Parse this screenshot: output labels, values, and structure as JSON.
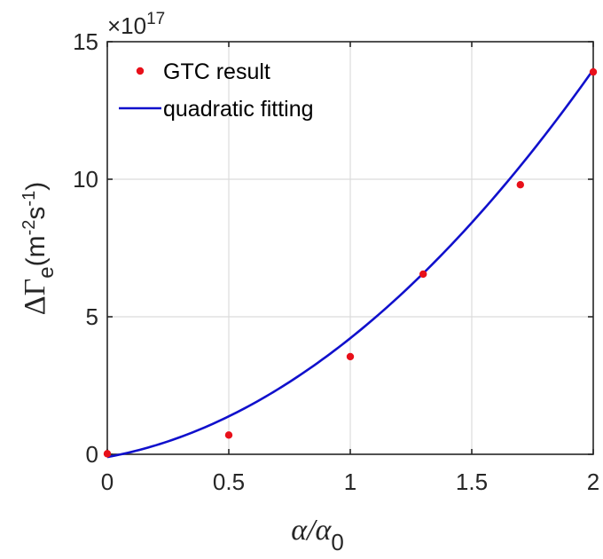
{
  "chart_data": {
    "type": "line",
    "title": "",
    "xlabel": "α/α",
    "xlabel_sub": "0",
    "ylabel": "ΔΓ",
    "ylabel_sub": "e",
    "ylabel_units": "(m",
    "ylabel_units_exp1": "-2",
    "ylabel_units_mid": "s",
    "ylabel_units_exp2": "-1",
    "ylabel_units_end": ")",
    "y_multiplier_base": "×10",
    "y_multiplier_exp": "17",
    "xlim": [
      0,
      2
    ],
    "ylim": [
      0,
      15
    ],
    "xticks": [
      0,
      0.5,
      1,
      1.5,
      2
    ],
    "xtick_labels": [
      "0",
      "0.5",
      "1",
      "1.5",
      "2"
    ],
    "yticks": [
      0,
      5,
      10,
      15
    ],
    "ytick_labels": [
      "0",
      "5",
      "10",
      "15"
    ],
    "grid": true,
    "legend_position": "top-left",
    "series": [
      {
        "name": "GTC result",
        "kind": "scatter",
        "color": "#e8101a",
        "x": [
          0,
          0.5,
          1,
          1.3,
          1.7,
          2
        ],
        "y": [
          0.02,
          0.7,
          3.55,
          6.55,
          9.8,
          13.9
        ]
      },
      {
        "name": "quadratic fitting",
        "kind": "line",
        "color": "#1010cc",
        "fit": {
          "a": 2.72,
          "b": 1.6,
          "c": -0.1
        }
      }
    ]
  }
}
